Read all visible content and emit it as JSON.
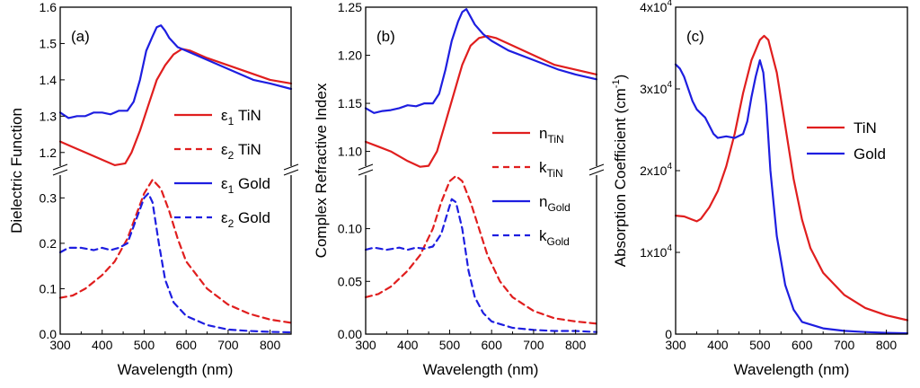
{
  "chart_data": [
    {
      "panel": "(a)",
      "type": "line",
      "xlabel": "Wavelength (nm)",
      "ylabel": "Dielectric Function",
      "xlim": [
        300,
        850
      ],
      "xticks": [
        "300",
        "400",
        "500",
        "600",
        "700",
        "800"
      ],
      "upper": {
        "ylim": [
          1.15,
          1.6
        ],
        "yticks": [
          "1.2",
          "1.3",
          "1.4",
          "1.5",
          "1.6"
        ],
        "series": [
          {
            "name": "ε1 TiN",
            "color": "#e01e1e",
            "dash": false,
            "x": [
              300,
              330,
              360,
              400,
              430,
              455,
              470,
              490,
              510,
              530,
              550,
              570,
              590,
              610,
              650,
              700,
              750,
              800,
              850
            ],
            "y": [
              1.23,
              1.215,
              1.2,
              1.18,
              1.165,
              1.17,
              1.2,
              1.26,
              1.33,
              1.4,
              1.44,
              1.47,
              1.485,
              1.48,
              1.46,
              1.44,
              1.42,
              1.4,
              1.39
            ]
          },
          {
            "name": "ε1 Gold",
            "color": "#1e1ee0",
            "dash": false,
            "x": [
              300,
              320,
              340,
              360,
              380,
              400,
              420,
              440,
              460,
              475,
              490,
              505,
              520,
              530,
              540,
              550,
              560,
              580,
              600,
              640,
              700,
              760,
              800,
              850
            ],
            "y": [
              1.31,
              1.295,
              1.3,
              1.3,
              1.31,
              1.31,
              1.305,
              1.315,
              1.315,
              1.34,
              1.4,
              1.48,
              1.52,
              1.545,
              1.55,
              1.535,
              1.515,
              1.49,
              1.48,
              1.46,
              1.43,
              1.4,
              1.39,
              1.375
            ]
          }
        ]
      },
      "lower": {
        "ylim": [
          0,
          0.36
        ],
        "yticks": [
          "0.0",
          "0.1",
          "0.2",
          "0.3"
        ],
        "series": [
          {
            "name": "ε2 TiN",
            "color": "#e01e1e",
            "dash": true,
            "x": [
              300,
              330,
              360,
              400,
              430,
              460,
              480,
              500,
              520,
              540,
              560,
              580,
              600,
              650,
              700,
              750,
              800,
              850
            ],
            "y": [
              0.08,
              0.085,
              0.1,
              0.13,
              0.16,
              0.21,
              0.26,
              0.31,
              0.34,
              0.32,
              0.27,
              0.21,
              0.16,
              0.1,
              0.065,
              0.045,
              0.032,
              0.025
            ]
          },
          {
            "name": "ε2 Gold",
            "color": "#1e1ee0",
            "dash": true,
            "x": [
              300,
              320,
              350,
              380,
              400,
              420,
              440,
              460,
              480,
              500,
              510,
              520,
              535,
              550,
              570,
              600,
              650,
              700,
              750,
              800,
              850
            ],
            "y": [
              0.18,
              0.19,
              0.19,
              0.185,
              0.19,
              0.185,
              0.19,
              0.2,
              0.25,
              0.3,
              0.31,
              0.29,
              0.2,
              0.12,
              0.07,
              0.04,
              0.02,
              0.01,
              0.007,
              0.005,
              0.004
            ]
          }
        ]
      },
      "legend": [
        {
          "sym": "ε",
          "sub": "1",
          "label": "TiN",
          "color": "#e01e1e",
          "dash": false
        },
        {
          "sym": "ε",
          "sub": "2",
          "label": "TiN",
          "color": "#e01e1e",
          "dash": true
        },
        {
          "sym": "ε",
          "sub": "1",
          "label": "Gold",
          "color": "#1e1ee0",
          "dash": false
        },
        {
          "sym": "ε",
          "sub": "2",
          "label": "Gold",
          "color": "#1e1ee0",
          "dash": true
        }
      ]
    },
    {
      "panel": "(b)",
      "type": "line",
      "xlabel": "Wavelength (nm)",
      "ylabel": "Complex Refractive Index",
      "xlim": [
        300,
        850
      ],
      "xticks": [
        "300",
        "400",
        "500",
        "600",
        "700",
        "800"
      ],
      "upper": {
        "ylim": [
          1.08,
          1.25
        ],
        "yticks": [
          "1.10",
          "1.15",
          "1.20",
          "1.25"
        ],
        "series": [
          {
            "name": "n TiN",
            "color": "#e01e1e",
            "dash": false,
            "x": [
              300,
              330,
              360,
              400,
              430,
              450,
              470,
              490,
              510,
              530,
              550,
              570,
              590,
              610,
              650,
              700,
              750,
              800,
              850
            ],
            "y": [
              1.11,
              1.105,
              1.1,
              1.09,
              1.084,
              1.085,
              1.1,
              1.13,
              1.16,
              1.19,
              1.21,
              1.218,
              1.22,
              1.218,
              1.21,
              1.2,
              1.19,
              1.185,
              1.18
            ]
          },
          {
            "name": "n Gold",
            "color": "#1e1ee0",
            "dash": false,
            "x": [
              300,
              320,
              340,
              360,
              380,
              400,
              420,
              440,
              460,
              475,
              490,
              505,
              520,
              530,
              540,
              550,
              560,
              580,
              600,
              640,
              700,
              760,
              800,
              850
            ],
            "y": [
              1.145,
              1.14,
              1.142,
              1.143,
              1.145,
              1.148,
              1.147,
              1.15,
              1.15,
              1.16,
              1.185,
              1.215,
              1.235,
              1.245,
              1.248,
              1.24,
              1.232,
              1.222,
              1.215,
              1.205,
              1.195,
              1.185,
              1.18,
              1.175
            ]
          }
        ]
      },
      "lower": {
        "ylim": [
          0,
          0.155
        ],
        "yticks": [
          "0.00",
          "0.05",
          "0.10"
        ],
        "series": [
          {
            "name": "k TiN",
            "color": "#e01e1e",
            "dash": true,
            "x": [
              300,
              330,
              360,
              400,
              430,
              460,
              480,
              500,
              515,
              530,
              550,
              570,
              590,
              620,
              650,
              700,
              750,
              800,
              850
            ],
            "y": [
              0.035,
              0.038,
              0.045,
              0.06,
              0.075,
              0.1,
              0.125,
              0.145,
              0.15,
              0.145,
              0.125,
              0.1,
              0.075,
              0.05,
              0.035,
              0.022,
              0.015,
              0.012,
              0.01
            ]
          },
          {
            "name": "k Gold",
            "color": "#1e1ee0",
            "dash": true,
            "x": [
              300,
              320,
              350,
              380,
              400,
              420,
              440,
              460,
              480,
              495,
              505,
              515,
              530,
              545,
              560,
              580,
              600,
              650,
              700,
              750,
              800,
              850
            ],
            "y": [
              0.08,
              0.082,
              0.08,
              0.082,
              0.08,
              0.082,
              0.081,
              0.083,
              0.095,
              0.115,
              0.128,
              0.125,
              0.1,
              0.06,
              0.035,
              0.02,
              0.012,
              0.006,
              0.004,
              0.003,
              0.003,
              0.002
            ]
          }
        ]
      },
      "legend": [
        {
          "sym": "n",
          "sub": "TiN",
          "label": "",
          "color": "#e01e1e",
          "dash": false
        },
        {
          "sym": "k",
          "sub": "TiN",
          "label": "",
          "color": "#e01e1e",
          "dash": true
        },
        {
          "sym": "n",
          "sub": "Gold",
          "label": "",
          "color": "#1e1ee0",
          "dash": false
        },
        {
          "sym": "k",
          "sub": "Gold",
          "label": "",
          "color": "#1e1ee0",
          "dash": true
        }
      ]
    },
    {
      "panel": "(c)",
      "type": "line",
      "xlabel": "Wavelength (nm)",
      "ylabel": "Absorption Coefficient (cm",
      "ylabel_sup": "-1",
      "ylabel_end": ")",
      "xlim": [
        300,
        850
      ],
      "xticks": [
        "300",
        "400",
        "500",
        "600",
        "700",
        "800"
      ],
      "ylim": [
        0,
        40000
      ],
      "yticks": [
        {
          "v": 0,
          "text": "0",
          "exp": ""
        },
        {
          "v": 10000,
          "text": "1x10",
          "exp": "4"
        },
        {
          "v": 20000,
          "text": "2x10",
          "exp": "4"
        },
        {
          "v": 30000,
          "text": "3x10",
          "exp": "4"
        },
        {
          "v": 40000,
          "text": "4x10",
          "exp": "4"
        }
      ],
      "series": [
        {
          "name": "TiN",
          "color": "#e01e1e",
          "dash": false,
          "x": [
            300,
            320,
            340,
            350,
            360,
            380,
            400,
            420,
            440,
            460,
            480,
            500,
            510,
            520,
            540,
            560,
            580,
            600,
            620,
            650,
            700,
            750,
            800,
            850
          ],
          "y": [
            14500,
            14400,
            14000,
            13800,
            14100,
            15500,
            17500,
            20500,
            24500,
            29500,
            33500,
            36000,
            36500,
            36000,
            32000,
            25500,
            19000,
            14000,
            10500,
            7500,
            4800,
            3200,
            2300,
            1700
          ]
        },
        {
          "name": "Gold",
          "color": "#1e1ee0",
          "dash": false,
          "x": [
            300,
            310,
            320,
            330,
            340,
            350,
            360,
            370,
            380,
            390,
            400,
            420,
            440,
            460,
            470,
            480,
            490,
            500,
            508,
            515,
            525,
            540,
            560,
            580,
            600,
            650,
            700,
            750,
            800,
            850
          ],
          "y": [
            33000,
            32500,
            31500,
            30000,
            28500,
            27500,
            27000,
            26500,
            25500,
            24500,
            24000,
            24200,
            24000,
            24500,
            26000,
            29000,
            31500,
            33500,
            32000,
            28000,
            20000,
            12000,
            6000,
            3000,
            1500,
            700,
            400,
            250,
            150,
            100
          ]
        }
      ],
      "legend": [
        {
          "sym": "TiN",
          "sub": "",
          "label": "",
          "color": "#e01e1e",
          "dash": false
        },
        {
          "sym": "Gold",
          "sub": "",
          "label": "",
          "color": "#1e1ee0",
          "dash": false
        }
      ]
    }
  ]
}
